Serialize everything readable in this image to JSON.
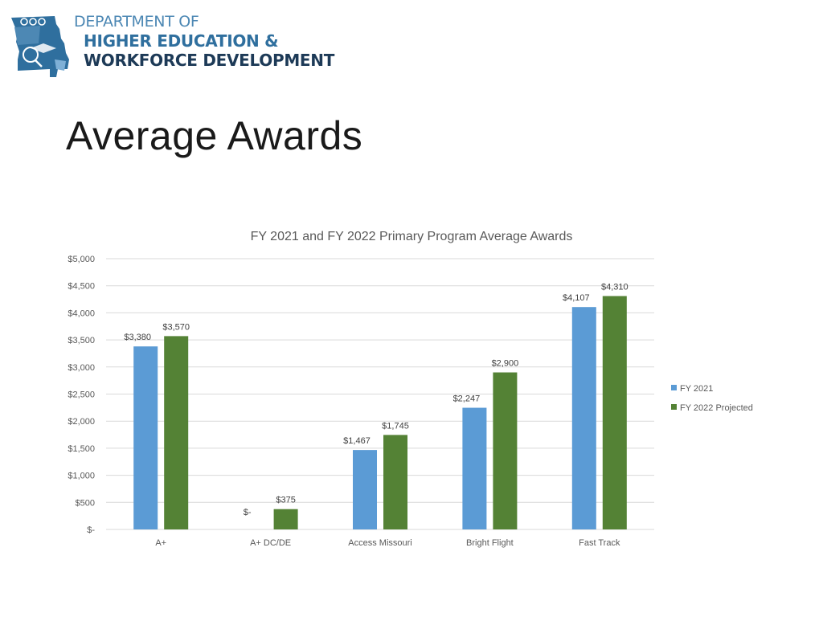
{
  "logo": {
    "line1": "DEPARTMENT OF",
    "line2": "HIGHER EDUCATION &",
    "line3": "WORKFORCE DEVELOPMENT"
  },
  "slide": {
    "title": "Average Awards"
  },
  "colors": {
    "series1": "#5b9bd5",
    "series2": "#548235",
    "grid": "#d9d9d9",
    "axis_text": "#595959"
  },
  "chart_data": {
    "type": "bar",
    "title": "FY 2021 and FY 2022 Primary Program Average Awards",
    "categories": [
      "A+",
      "A+ DC/DE",
      "Access Missouri",
      "Bright Flight",
      "Fast Track"
    ],
    "series": [
      {
        "name": "FY 2021",
        "values": [
          3380,
          0,
          1467,
          2247,
          4107
        ],
        "labels": [
          "$3,380",
          "$-",
          "$1,467",
          "$2,247",
          "$4,107"
        ]
      },
      {
        "name": "FY 2022 Projected",
        "values": [
          3570,
          375,
          1745,
          2900,
          4310
        ],
        "labels": [
          "$3,570",
          "$375",
          "$1,745",
          "$2,900",
          "$4,310"
        ]
      }
    ],
    "ylim": [
      0,
      5000
    ],
    "yticks": [
      {
        "value": 0,
        "label": "$-"
      },
      {
        "value": 500,
        "label": "$500"
      },
      {
        "value": 1000,
        "label": "$1,000"
      },
      {
        "value": 1500,
        "label": "$1,500"
      },
      {
        "value": 2000,
        "label": "$2,000"
      },
      {
        "value": 2500,
        "label": "$2,500"
      },
      {
        "value": 3000,
        "label": "$3,000"
      },
      {
        "value": 3500,
        "label": "$3,500"
      },
      {
        "value": 4000,
        "label": "$4,000"
      },
      {
        "value": 4500,
        "label": "$4,500"
      },
      {
        "value": 5000,
        "label": "$5,000"
      }
    ],
    "grid": true,
    "legend": "right"
  }
}
